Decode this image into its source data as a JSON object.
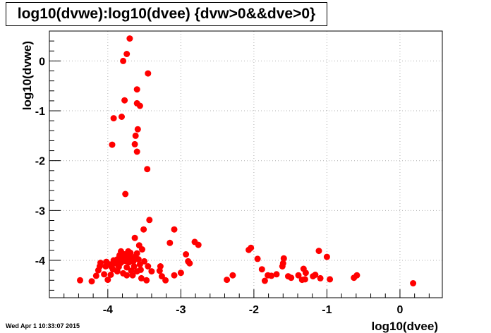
{
  "chart_data": {
    "type": "scatter",
    "title": "log10(dvwe):log10(dvee) {dvw>0&&dve>0}",
    "xlabel": "log10(dvee)",
    "ylabel": "log10(dvwe)",
    "xlim": [
      -4.8,
      0.58
    ],
    "ylim": [
      -4.75,
      0.6
    ],
    "x_ticks": [
      -4,
      -3,
      -2,
      -1,
      0
    ],
    "y_ticks": [
      0,
      -1,
      -2,
      -3,
      -4
    ],
    "grid": true,
    "marker_color": "#ff0000",
    "points": [
      [
        -3.7,
        0.45
      ],
      [
        -3.74,
        0.14
      ],
      [
        -3.79,
        0.0
      ],
      [
        -3.45,
        -0.25
      ],
      [
        -3.6,
        -0.57
      ],
      [
        -3.77,
        -0.79
      ],
      [
        -3.6,
        -0.85
      ],
      [
        -3.56,
        -0.9
      ],
      [
        -3.92,
        -1.15
      ],
      [
        -3.81,
        -1.12
      ],
      [
        -3.59,
        -1.37
      ],
      [
        -3.62,
        -1.5
      ],
      [
        -3.63,
        -1.67
      ],
      [
        -3.94,
        -1.68
      ],
      [
        -3.6,
        -1.82
      ],
      [
        -3.46,
        -2.17
      ],
      [
        -3.76,
        -2.67
      ],
      [
        -3.43,
        -3.19
      ],
      [
        -3.51,
        -3.38
      ],
      [
        -3.09,
        -3.38
      ],
      [
        -3.63,
        -3.55
      ],
      [
        -3.15,
        -3.65
      ],
      [
        -2.81,
        -3.63
      ],
      [
        -2.76,
        -3.69
      ],
      [
        -3.57,
        -3.7
      ],
      [
        -2.93,
        -3.88
      ],
      [
        -2.9,
        -4.02
      ],
      [
        -2.88,
        -4.06
      ],
      [
        -3.09,
        -4.3
      ],
      [
        -3.29,
        -4.21
      ],
      [
        -3.26,
        -4.32
      ],
      [
        -3.21,
        -4.4
      ],
      [
        -3.28,
        -4.12
      ],
      [
        -3.0,
        -4.25
      ],
      [
        -3.72,
        -3.82
      ],
      [
        -3.82,
        -3.82
      ],
      [
        -3.69,
        -3.85
      ],
      [
        -3.77,
        -3.88
      ],
      [
        -3.84,
        -3.9
      ],
      [
        -3.73,
        -3.93
      ],
      [
        -3.62,
        -3.92
      ],
      [
        -3.67,
        -3.96
      ],
      [
        -3.8,
        -3.98
      ],
      [
        -3.87,
        -3.98
      ],
      [
        -3.92,
        -4.0
      ],
      [
        -3.76,
        -4.01
      ],
      [
        -3.65,
        -4.02
      ],
      [
        -3.71,
        -4.04
      ],
      [
        -3.82,
        -4.05
      ],
      [
        -3.9,
        -4.06
      ],
      [
        -3.97,
        -4.08
      ],
      [
        -4.02,
        -4.03
      ],
      [
        -4.1,
        -4.05
      ],
      [
        -4.11,
        -4.12
      ],
      [
        -3.95,
        -4.13
      ],
      [
        -3.85,
        -4.13
      ],
      [
        -3.74,
        -4.14
      ],
      [
        -3.64,
        -4.12
      ],
      [
        -3.56,
        -4.08
      ],
      [
        -3.5,
        -4.02
      ],
      [
        -3.45,
        -4.12
      ],
      [
        -3.4,
        -4.22
      ],
      [
        -3.55,
        -4.19
      ],
      [
        -3.6,
        -4.22
      ],
      [
        -3.68,
        -4.21
      ],
      [
        -3.79,
        -4.26
      ],
      [
        -3.87,
        -4.22
      ],
      [
        -3.96,
        -4.29
      ],
      [
        -4.05,
        -4.28
      ],
      [
        -4.13,
        -4.2
      ],
      [
        -4.16,
        -4.31
      ],
      [
        -4.22,
        -4.42
      ],
      [
        -4.38,
        -4.4
      ],
      [
        -4.0,
        -4.39
      ],
      [
        -3.74,
        -4.3
      ],
      [
        -3.66,
        -4.3
      ],
      [
        -3.54,
        -4.36
      ],
      [
        -3.47,
        -4.4
      ],
      [
        -3.93,
        -4.18
      ],
      [
        -4.03,
        -4.12
      ],
      [
        -3.58,
        -3.98
      ],
      [
        -3.6,
        -3.86
      ],
      [
        -3.53,
        -3.78
      ],
      [
        -2.37,
        -4.39
      ],
      [
        -2.29,
        -4.3
      ],
      [
        -2.07,
        -3.79
      ],
      [
        -2.04,
        -3.75
      ],
      [
        -1.95,
        -3.97
      ],
      [
        -1.89,
        -4.18
      ],
      [
        -1.85,
        -4.41
      ],
      [
        -1.81,
        -4.3
      ],
      [
        -1.76,
        -4.31
      ],
      [
        -1.69,
        -4.28
      ],
      [
        -1.61,
        -4.12
      ],
      [
        -1.59,
        -3.96
      ],
      [
        -1.6,
        -4.06
      ],
      [
        -1.53,
        -4.32
      ],
      [
        -1.49,
        -4.35
      ],
      [
        -1.39,
        -4.3
      ],
      [
        -1.34,
        -4.39
      ],
      [
        -1.3,
        -4.38
      ],
      [
        -1.29,
        -4.25
      ],
      [
        -1.19,
        -4.32
      ],
      [
        -1.16,
        -4.29
      ],
      [
        -1.11,
        -3.81
      ],
      [
        -1.09,
        -4.36
      ],
      [
        -1.0,
        -3.93
      ],
      [
        -0.96,
        -4.38
      ],
      [
        -0.63,
        -4.35
      ],
      [
        -0.59,
        -4.3
      ],
      [
        0.18,
        -4.46
      ],
      [
        -1.32,
        -4.17
      ]
    ]
  },
  "footer_timestamp": "Wed Apr  1 10:33:07 2015"
}
